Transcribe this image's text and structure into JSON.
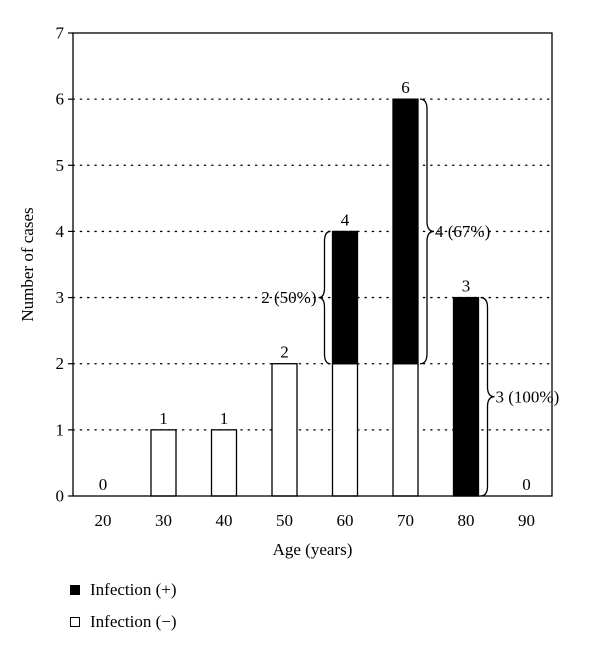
{
  "chart_data": {
    "type": "bar",
    "stacked": true,
    "title": "",
    "xlabel": "Age (years)",
    "ylabel": "Number of cases",
    "ylim": [
      0,
      7
    ],
    "yticks": [
      "0",
      "1",
      "2",
      "3",
      "4",
      "5",
      "6",
      "7"
    ],
    "categories": [
      "20",
      "30",
      "40",
      "50",
      "60",
      "70",
      "80",
      "90"
    ],
    "series": [
      {
        "name": "Infection (−)",
        "color": "#ffffff",
        "values": [
          0,
          1,
          1,
          2,
          2,
          2,
          0,
          0
        ]
      },
      {
        "name": "Infection (+)",
        "color": "#000000",
        "values": [
          0,
          0,
          0,
          0,
          2,
          4,
          3,
          0
        ]
      }
    ],
    "totals": [
      "0",
      "1",
      "1",
      "2",
      "4",
      "6",
      "3",
      "0"
    ],
    "grid": "horizontal dotted",
    "legend_position": "bottom-left",
    "annotations": [
      {
        "category": "60",
        "text": "2 (50%)",
        "brace_side": "left",
        "from": 2,
        "to": 4
      },
      {
        "category": "70",
        "text": "4 (67%)",
        "brace_side": "right",
        "from": 2,
        "to": 6
      },
      {
        "category": "80",
        "text": "3 (100%)",
        "brace_side": "right",
        "from": 0,
        "to": 3
      }
    ]
  },
  "legend": {
    "positive": "Infection (+)",
    "negative": "Infection (−)"
  }
}
